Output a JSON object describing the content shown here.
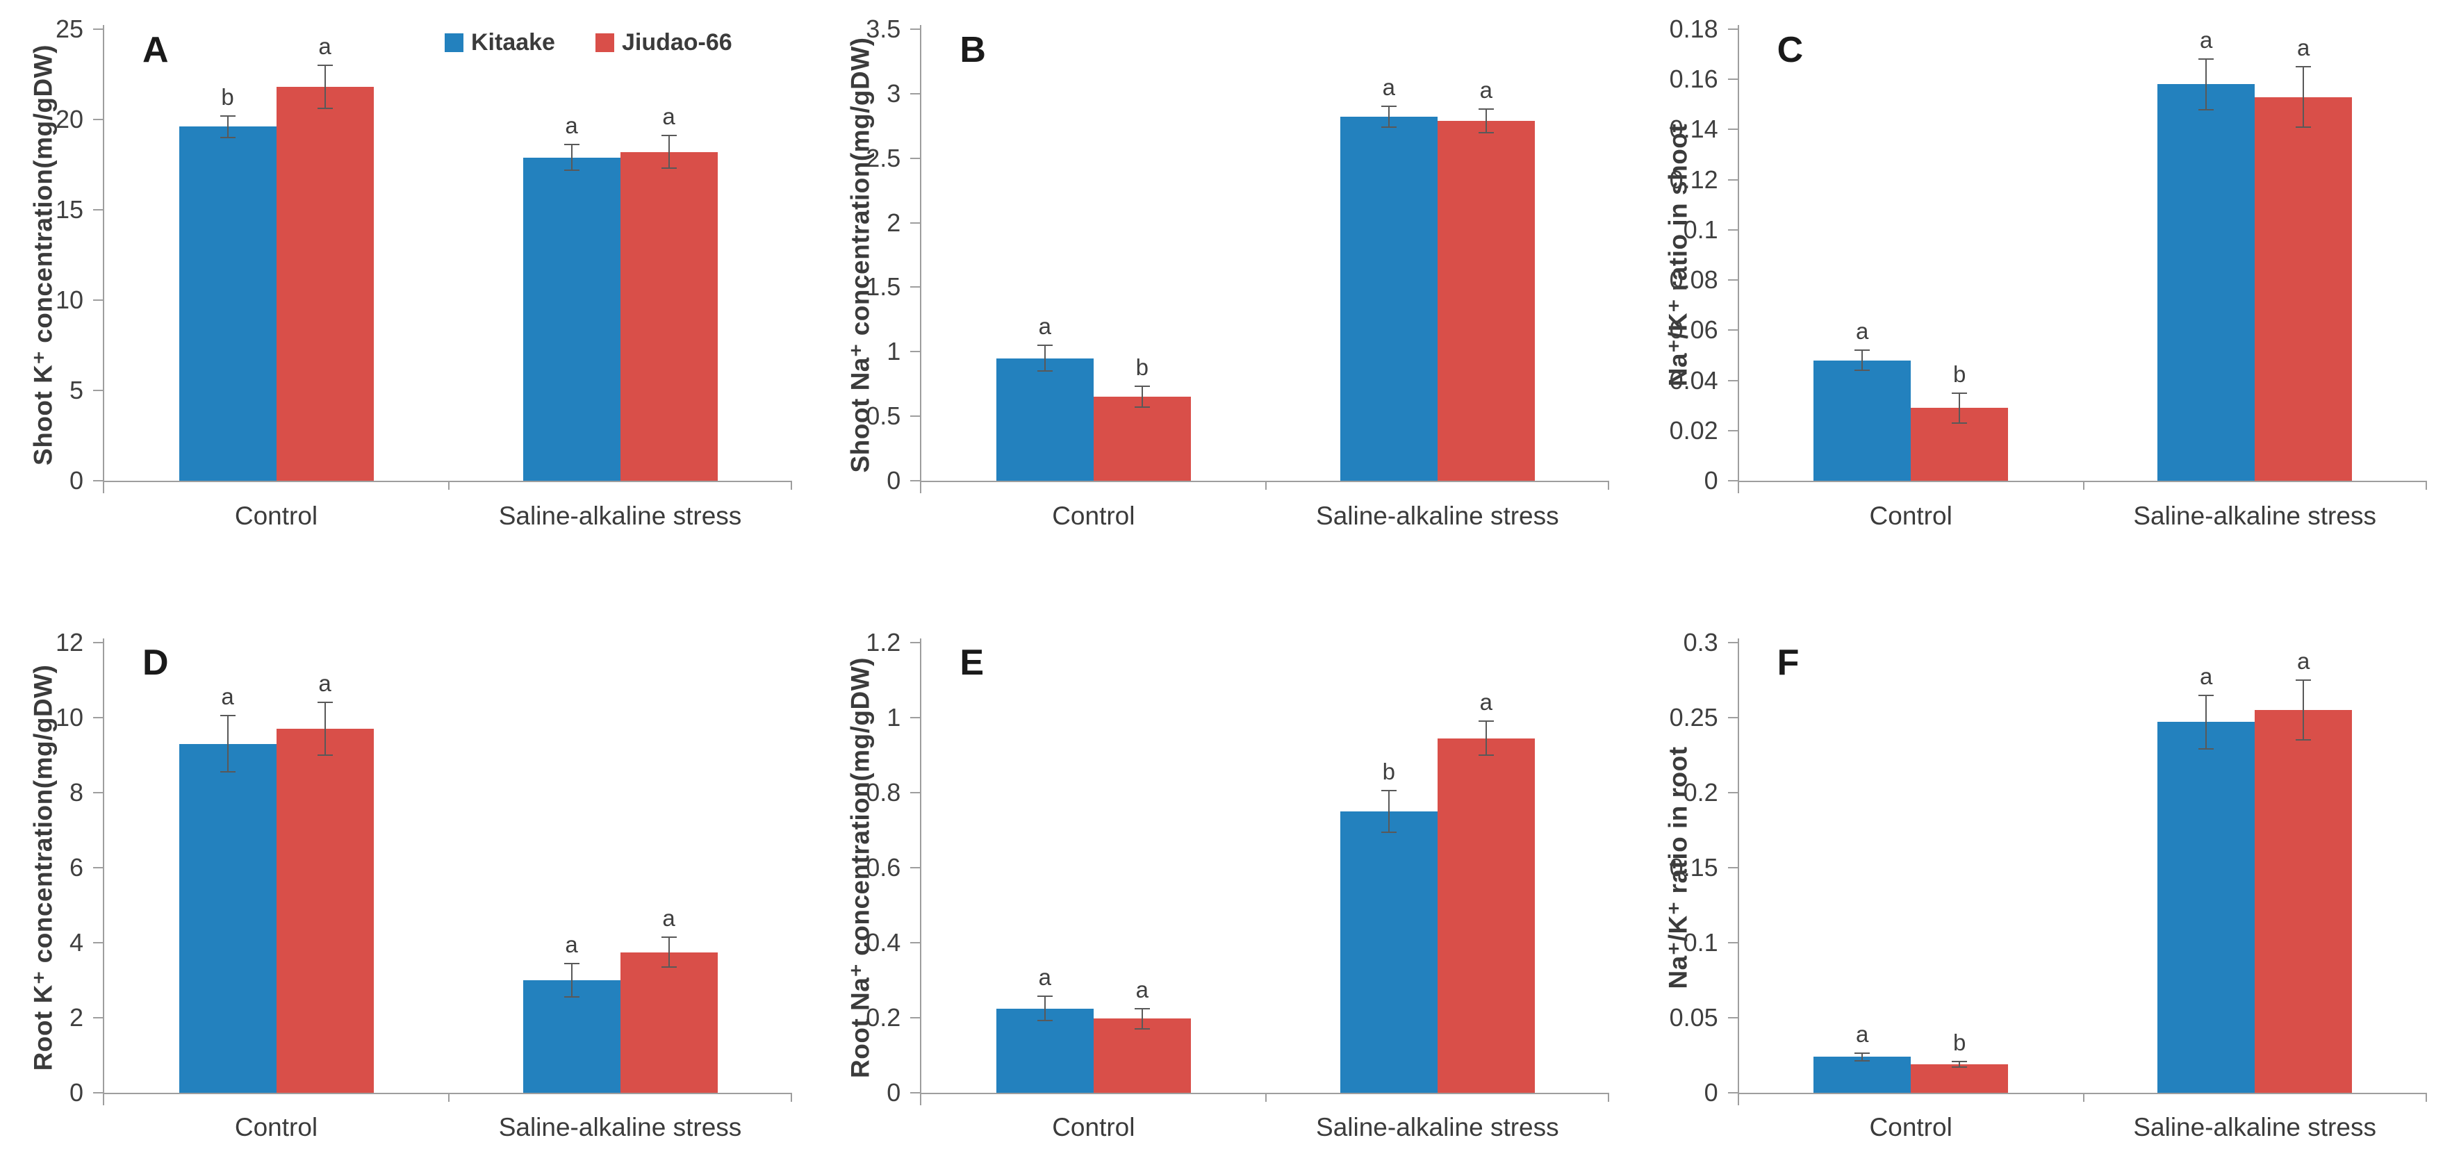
{
  "figure": {
    "legend": {
      "position": "top-center-of-panel-A",
      "items": [
        {
          "label": "Kitaake",
          "color": "#2381BE",
          "swatch": "blue-square-icon"
        },
        {
          "label": "Jiudao-66",
          "color": "#D94F49",
          "swatch": "red-square-icon"
        }
      ]
    },
    "colors": {
      "kitaake_blue": "#2381BE",
      "jiudao_red": "#D94F49",
      "axis_line": "#9e9e9e",
      "error_bar": "#595959",
      "text": "#3b3b3b"
    }
  },
  "chart_data": [
    {
      "panel": "A",
      "type": "bar",
      "title": "",
      "xlabel": "",
      "ylabel": "Shoot K⁺ concentration(mg/gDW)",
      "ylim": [
        0,
        25
      ],
      "grid": false,
      "show_legend": true,
      "ytick_values": [
        0,
        5,
        10,
        15,
        20,
        25
      ],
      "ytick_labels": [
        "0",
        "5",
        "10",
        "15",
        "20",
        "25"
      ],
      "categories": [
        "Control",
        "Saline-alkaline stress"
      ],
      "series": [
        {
          "name": "Kitaake",
          "color": "#2381BE",
          "values": [
            19.6,
            17.9
          ],
          "errors": [
            0.6,
            0.7
          ],
          "sig_letters": [
            "b",
            "a"
          ]
        },
        {
          "name": "Jiudao-66",
          "color": "#D94F49",
          "values": [
            21.8,
            18.2
          ],
          "errors": [
            1.2,
            0.9
          ],
          "sig_letters": [
            "a",
            "a"
          ]
        }
      ]
    },
    {
      "panel": "B",
      "type": "bar",
      "title": "",
      "xlabel": "",
      "ylabel": "Shoot Na⁺ concentration(mg/gDW)",
      "ylim": [
        0,
        3.5
      ],
      "grid": false,
      "show_legend": false,
      "ytick_values": [
        0,
        0.5,
        1,
        1.5,
        2,
        2.5,
        3,
        3.5
      ],
      "ytick_labels": [
        "0",
        "0.5",
        "1",
        "1.5",
        "2",
        "2.5",
        "3",
        "3.5"
      ],
      "categories": [
        "Control",
        "Saline-alkaline stress"
      ],
      "series": [
        {
          "name": "Kitaake",
          "color": "#2381BE",
          "values": [
            0.95,
            2.82
          ],
          "errors": [
            0.1,
            0.08
          ],
          "sig_letters": [
            "a",
            "a"
          ]
        },
        {
          "name": "Jiudao-66",
          "color": "#D94F49",
          "values": [
            0.65,
            2.79
          ],
          "errors": [
            0.08,
            0.09
          ],
          "sig_letters": [
            "b",
            "a"
          ]
        }
      ]
    },
    {
      "panel": "C",
      "type": "bar",
      "title": "",
      "xlabel": "",
      "ylabel": "Na⁺/K⁺ ratio in shoot",
      "ylim": [
        0,
        0.18
      ],
      "grid": false,
      "show_legend": false,
      "ytick_values": [
        0,
        0.02,
        0.04,
        0.06,
        0.08,
        0.1,
        0.12,
        0.14,
        0.16,
        0.18
      ],
      "ytick_labels": [
        "0",
        "0.02",
        "0.04",
        "0.06",
        "0.08",
        "0.1",
        "0.12",
        "0.14",
        "0.16",
        "0.18"
      ],
      "categories": [
        "Control",
        "Saline-alkaline stress"
      ],
      "series": [
        {
          "name": "Kitaake",
          "color": "#2381BE",
          "values": [
            0.048,
            0.158
          ],
          "errors": [
            0.004,
            0.01
          ],
          "sig_letters": [
            "a",
            "a"
          ]
        },
        {
          "name": "Jiudao-66",
          "color": "#D94F49",
          "values": [
            0.029,
            0.153
          ],
          "errors": [
            0.006,
            0.012
          ],
          "sig_letters": [
            "b",
            "a"
          ]
        }
      ]
    },
    {
      "panel": "D",
      "type": "bar",
      "title": "",
      "xlabel": "",
      "ylabel": "Root K⁺ concentration(mg/gDW)",
      "ylim": [
        0,
        12
      ],
      "grid": false,
      "show_legend": false,
      "ytick_values": [
        0,
        2,
        4,
        6,
        8,
        10,
        12
      ],
      "ytick_labels": [
        "0",
        "2",
        "4",
        "6",
        "8",
        "10",
        "12"
      ],
      "categories": [
        "Control",
        "Saline-alkaline stress"
      ],
      "series": [
        {
          "name": "Kitaake",
          "color": "#2381BE",
          "values": [
            9.3,
            3.0
          ],
          "errors": [
            0.75,
            0.45
          ],
          "sig_letters": [
            "a",
            "a"
          ]
        },
        {
          "name": "Jiudao-66",
          "color": "#D94F49",
          "values": [
            9.7,
            3.75
          ],
          "errors": [
            0.7,
            0.4
          ],
          "sig_letters": [
            "a",
            "a"
          ]
        }
      ]
    },
    {
      "panel": "E",
      "type": "bar",
      "title": "",
      "xlabel": "",
      "ylabel": "Root Na⁺ concentration(mg/gDW)",
      "ylim": [
        0,
        1.2
      ],
      "grid": false,
      "show_legend": false,
      "ytick_values": [
        0,
        0.2,
        0.4,
        0.6,
        0.8,
        1,
        1.2
      ],
      "ytick_labels": [
        "0",
        "0.2",
        "0.4",
        "0.6",
        "0.8",
        "1",
        "1.2"
      ],
      "categories": [
        "Control",
        "Saline-alkaline stress"
      ],
      "series": [
        {
          "name": "Kitaake",
          "color": "#2381BE",
          "values": [
            0.225,
            0.75
          ],
          "errors": [
            0.033,
            0.055
          ],
          "sig_letters": [
            "a",
            "b"
          ]
        },
        {
          "name": "Jiudao-66",
          "color": "#D94F49",
          "values": [
            0.198,
            0.945
          ],
          "errors": [
            0.027,
            0.045
          ],
          "sig_letters": [
            "a",
            "a"
          ]
        }
      ]
    },
    {
      "panel": "F",
      "type": "bar",
      "title": "",
      "xlabel": "",
      "ylabel": "Na⁺/K⁺ ratio in root",
      "ylim": [
        0,
        0.3
      ],
      "grid": false,
      "show_legend": false,
      "ytick_values": [
        0,
        0.05,
        0.1,
        0.15,
        0.2,
        0.25,
        0.3
      ],
      "ytick_labels": [
        "0",
        "0.05",
        "0.1",
        "0.15",
        "0.2",
        "0.25",
        "0.3"
      ],
      "categories": [
        "Control",
        "Saline-alkaline stress"
      ],
      "series": [
        {
          "name": "Kitaake",
          "color": "#2381BE",
          "values": [
            0.024,
            0.247
          ],
          "errors": [
            0.0025,
            0.018
          ],
          "sig_letters": [
            "a",
            "a"
          ]
        },
        {
          "name": "Jiudao-66",
          "color": "#D94F49",
          "values": [
            0.019,
            0.255
          ],
          "errors": [
            0.002,
            0.02
          ],
          "sig_letters": [
            "b",
            "a"
          ]
        }
      ]
    }
  ]
}
